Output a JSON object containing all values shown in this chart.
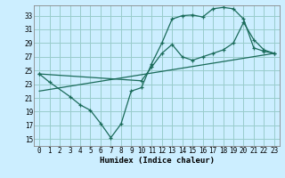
{
  "xlabel": "Humidex (Indice chaleur)",
  "bg_color": "#cceeff",
  "grid_color": "#99cccc",
  "line_color": "#1a6b5a",
  "xlim": [
    -0.5,
    23.5
  ],
  "ylim": [
    14,
    34.5
  ],
  "yticks": [
    15,
    17,
    19,
    21,
    23,
    25,
    27,
    29,
    31,
    33
  ],
  "xticks": [
    0,
    1,
    2,
    3,
    4,
    5,
    6,
    7,
    8,
    9,
    10,
    11,
    12,
    13,
    14,
    15,
    16,
    17,
    18,
    19,
    20,
    21,
    22,
    23
  ],
  "line1_x": [
    0,
    1,
    3,
    4,
    5,
    6,
    7,
    8,
    9,
    10,
    11,
    12,
    13,
    14,
    15,
    16,
    17,
    18,
    19,
    20,
    21,
    22,
    23
  ],
  "line1_y": [
    24.5,
    23.3,
    21.2,
    20.0,
    19.2,
    17.3,
    15.2,
    17.2,
    22.0,
    22.5,
    26.0,
    29.0,
    32.5,
    33.0,
    33.1,
    32.8,
    34.0,
    34.2,
    34.0,
    32.5,
    28.3,
    27.8,
    27.5
  ],
  "line2_x": [
    0,
    10,
    11,
    12,
    13,
    14,
    15,
    16,
    17,
    18,
    19,
    20,
    21,
    22,
    23
  ],
  "line2_y": [
    24.5,
    23.5,
    25.5,
    27.5,
    28.8,
    27.0,
    26.5,
    27.0,
    27.5,
    28.0,
    29.0,
    32.0,
    29.5,
    28.0,
    27.5
  ],
  "line3_x": [
    0,
    23
  ],
  "line3_y": [
    22.0,
    27.5
  ]
}
